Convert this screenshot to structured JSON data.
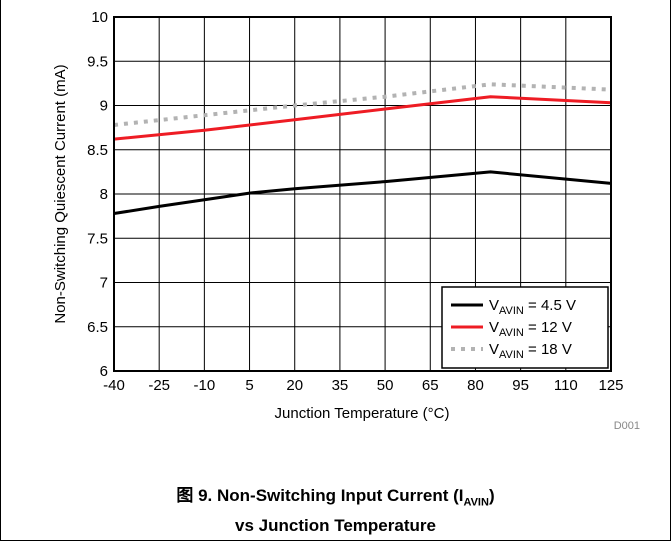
{
  "chart_data": {
    "type": "line",
    "title": "",
    "xlabel": "Junction Temperature (°C)",
    "ylabel": "Non-Switching Quiescent Current (mA)",
    "xlim": [
      -40,
      125
    ],
    "ylim": [
      6,
      10
    ],
    "x_ticks": [
      -40,
      -25,
      -10,
      5,
      20,
      35,
      50,
      65,
      80,
      95,
      110,
      125
    ],
    "y_ticks": [
      "6",
      "6.5",
      "7",
      "7.5",
      "8",
      "8.5",
      "9",
      "9.5",
      "10"
    ],
    "grid": true,
    "legend_position": "bottom-right",
    "series": [
      {
        "name_main": "V",
        "name_sub": "AVIN",
        "name_rest": " = 4.5 V",
        "color": "#000000",
        "style": "solid",
        "x": [
          -40,
          -25,
          5,
          20,
          50,
          85,
          125
        ],
        "y": [
          7.78,
          7.86,
          8.01,
          8.06,
          8.14,
          8.25,
          8.12
        ]
      },
      {
        "name_main": "V",
        "name_sub": "AVIN",
        "name_rest": " = 12 V",
        "color": "#ee1c24",
        "style": "solid",
        "x": [
          -40,
          -10,
          20,
          50,
          85,
          125
        ],
        "y": [
          8.62,
          8.72,
          8.84,
          8.96,
          9.1,
          9.03
        ]
      },
      {
        "name_main": "V",
        "name_sub": "AVIN",
        "name_rest": " = 18 V",
        "color": "#b3b3b3",
        "style": "dotted",
        "x": [
          -40,
          -10,
          20,
          50,
          85,
          125
        ],
        "y": [
          8.78,
          8.89,
          9.0,
          9.1,
          9.24,
          9.18
        ]
      }
    ]
  },
  "figure_code": "D001",
  "caption": {
    "line1_main": "图 9. Non-Switching Input Current (I",
    "line1_sub": "AVIN",
    "line1_end": ")",
    "line2": "vs Junction Temperature"
  }
}
